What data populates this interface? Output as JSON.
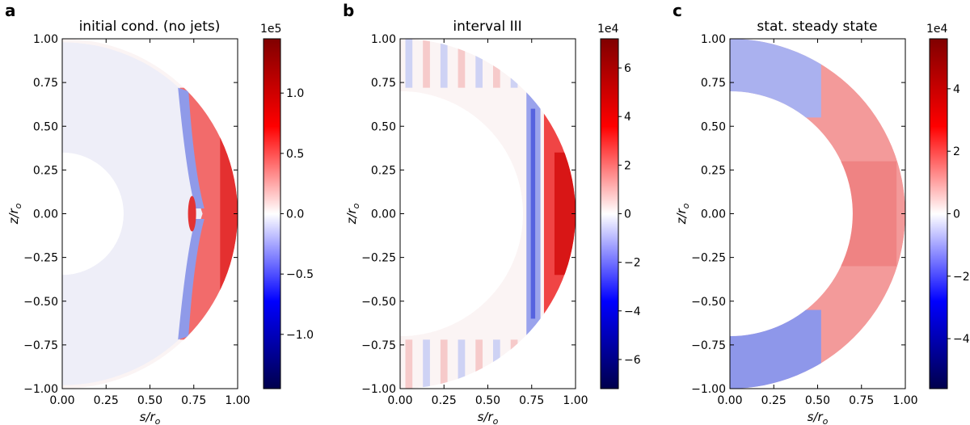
{
  "chart_data": [
    {
      "type": "heatmap",
      "panel_label": "a",
      "title": "initial cond. (no jets)",
      "xlabel": "s/r",
      "xlabel_sub": "o",
      "ylabel": "z/r",
      "ylabel_sub": "o",
      "xlim": [
        0.0,
        1.0
      ],
      "ylim": [
        -1.0,
        1.0
      ],
      "xticks": [
        "0.00",
        "0.25",
        "0.50",
        "0.75",
        "1.00"
      ],
      "yticks": [
        "1.00",
        "0.75",
        "0.50",
        "0.25",
        "0.00",
        "−0.25",
        "−0.50",
        "−0.75",
        "−1.00"
      ],
      "shell_inner_radius": 0.35,
      "shell_outer_radius": 1.0,
      "colormap": "seismic",
      "colorbar": {
        "multiplier": "1e5",
        "range": [
          -1.45,
          1.45
        ],
        "ticks": [
          1.0,
          0.5,
          0.0,
          -0.5,
          -1.0
        ],
        "tick_labels": [
          "1.0",
          "0.5",
          "0.0",
          "−0.5",
          "−1.0"
        ]
      },
      "field_description": "red band near outer boundary (s>0.75), blue band along tangent cylinder near s≈0.7, near zero elsewhere"
    },
    {
      "type": "heatmap",
      "panel_label": "b",
      "title": "interval III",
      "xlabel": "s/r",
      "xlabel_sub": "o",
      "ylabel": "z/r",
      "ylabel_sub": "o",
      "xlim": [
        0.0,
        1.0
      ],
      "ylim": [
        -1.0,
        1.0
      ],
      "xticks": [
        "0.00",
        "0.25",
        "0.50",
        "0.75",
        "1.00"
      ],
      "yticks": [
        "1.00",
        "0.75",
        "0.50",
        "0.25",
        "0.00",
        "−0.25",
        "−0.50",
        "−0.75",
        "−1.00"
      ],
      "shell_inner_radius": 0.7,
      "shell_outer_radius": 1.0,
      "colormap": "seismic",
      "colorbar": {
        "multiplier": "1e4",
        "range": [
          -7.2,
          7.2
        ],
        "ticks": [
          6,
          4,
          2,
          0,
          -2,
          -4,
          -6
        ],
        "tick_labels": [
          "6",
          "4",
          "2",
          "0",
          "−2",
          "−4",
          "−6"
        ]
      },
      "field_description": "strong red outside tangent cylinder (s>0.8), blue band near s≈0.75, weak mixed stripes at high latitude"
    },
    {
      "type": "heatmap",
      "panel_label": "c",
      "title": "stat. steady state",
      "xlabel": "s/r",
      "xlabel_sub": "o",
      "ylabel": "z/r",
      "ylabel_sub": "o",
      "xlim": [
        0.0,
        1.0
      ],
      "ylim": [
        -1.0,
        1.0
      ],
      "xticks": [
        "0.00",
        "0.25",
        "0.50",
        "0.75",
        "1.00"
      ],
      "yticks": [
        "1.00",
        "0.75",
        "0.50",
        "0.25",
        "0.00",
        "−0.25",
        "−0.50",
        "−0.75",
        "−1.00"
      ],
      "shell_inner_radius": 0.7,
      "shell_outer_radius": 1.0,
      "colormap": "seismic",
      "colorbar": {
        "multiplier": "1e4",
        "range": [
          -5.6,
          5.6
        ],
        "ticks": [
          4,
          2,
          0,
          -2,
          -4
        ],
        "tick_labels": [
          "4",
          "2",
          "0",
          "−2",
          "−4"
        ]
      },
      "field_description": "moderate red throughout most of the shell, blue near the poles inside s<0.5"
    }
  ]
}
